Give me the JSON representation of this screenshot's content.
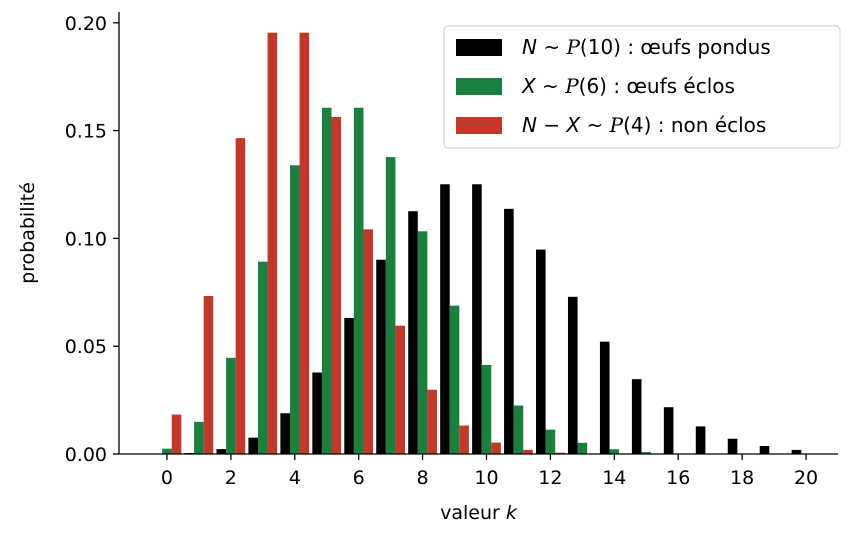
{
  "chart_data": {
    "type": "bar",
    "title": "",
    "xlabel_prefix": "valeur",
    "xlabel_var": "k",
    "ylabel": "probabilité",
    "xlim": [
      -1.5,
      21
    ],
    "ylim": [
      0,
      0.205
    ],
    "xticks": [
      0,
      2,
      4,
      6,
      8,
      10,
      12,
      14,
      16,
      18,
      20
    ],
    "xtick_labels": [
      "0",
      "2",
      "4",
      "6",
      "8",
      "10",
      "12",
      "14",
      "16",
      "18",
      "20"
    ],
    "yticks": [
      0,
      0.05,
      0.1,
      0.15,
      0.2
    ],
    "ytick_labels": [
      "0.00",
      "0.05",
      "0.10",
      "0.15",
      "0.20"
    ],
    "grid": false,
    "legend_position": "top-right",
    "x": [
      0,
      1,
      2,
      3,
      4,
      5,
      6,
      7,
      8,
      9,
      10,
      11,
      12,
      13,
      14,
      15,
      16,
      17,
      18,
      19,
      20
    ],
    "series": [
      {
        "name": "N ~ 𝒫(10) : œufs pondus",
        "legend_lhs": "N",
        "legend_param": "10",
        "legend_rest": " : œufs pondus",
        "color": "#000000",
        "offset": -0.3,
        "values": [
          4.54e-05,
          0.000454,
          0.00227,
          0.00757,
          0.0189,
          0.0378,
          0.0631,
          0.0901,
          0.1126,
          0.1251,
          0.1251,
          0.1137,
          0.0948,
          0.0729,
          0.0521,
          0.0347,
          0.0217,
          0.0128,
          0.0071,
          0.0037,
          0.0019
        ]
      },
      {
        "name": "X ~ 𝒫(6) : œufs éclos",
        "legend_lhs": "X",
        "legend_param": "6",
        "legend_rest": " : œufs éclos",
        "color": "#1a7f3f",
        "offset": 0.0,
        "values": [
          0.00248,
          0.0149,
          0.0446,
          0.0892,
          0.1339,
          0.1606,
          0.1606,
          0.1377,
          0.1033,
          0.0688,
          0.0413,
          0.0225,
          0.0113,
          0.0052,
          0.0022,
          0.0009,
          0.0003,
          0.0001,
          0.0,
          0.0,
          0.0
        ]
      },
      {
        "name": "N − X ~ 𝒫(4) : non éclos",
        "legend_lhs": "N − X",
        "legend_param": "4",
        "legend_rest": " : non éclos",
        "color": "#c0392b",
        "offset": 0.3,
        "values": [
          0.0183,
          0.0733,
          0.1465,
          0.1954,
          0.1954,
          0.1563,
          0.1042,
          0.0595,
          0.0298,
          0.0132,
          0.0053,
          0.0019,
          0.0006,
          0.0002,
          0.0001,
          0.0,
          0.0,
          0.0,
          0.0,
          0.0,
          0.0
        ]
      }
    ]
  }
}
